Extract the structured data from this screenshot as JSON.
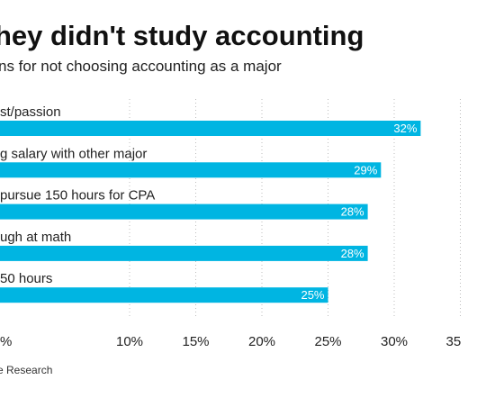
{
  "chart_data": {
    "type": "bar",
    "orientation": "horizontal",
    "title": "hey didn't study accounting",
    "subtitle": "ns for not choosing accounting as a major",
    "categories": [
      "st/passion",
      "g salary with other major",
      " pursue 150 hours for CPA",
      "ugh at math",
      "50 hours"
    ],
    "values": [
      32,
      29,
      28,
      28,
      25
    ],
    "value_labels": [
      "32%",
      "29%",
      "28%",
      "28%",
      "25%"
    ],
    "xlim": [
      0,
      35
    ],
    "ticks": [
      0,
      10,
      15,
      20,
      25,
      30,
      35
    ],
    "tick_labels": [
      "%",
      "10%",
      "15%",
      "20%",
      "25%",
      "30%",
      "35"
    ],
    "grid": "vertical dotted",
    "bar_color": "#00b5e2",
    "source": "e Research"
  }
}
